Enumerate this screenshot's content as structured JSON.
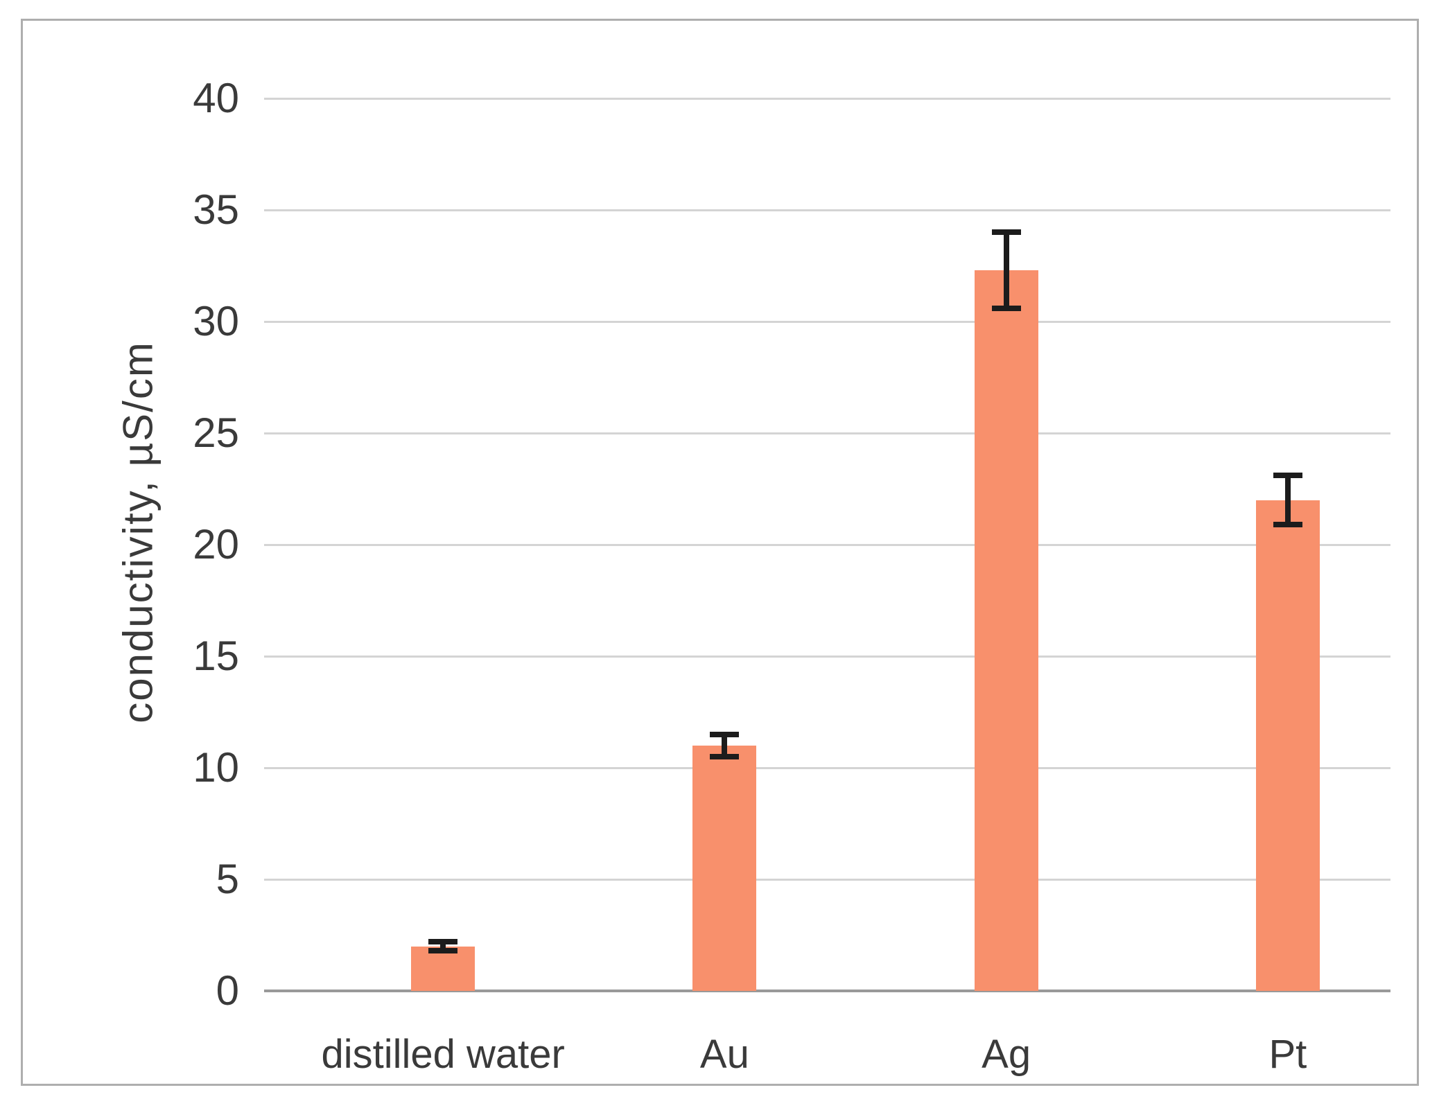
{
  "chart_data": {
    "type": "bar",
    "title": "",
    "xlabel": "",
    "ylabel": "conductivity, µS/cm",
    "categories": [
      "distilled water",
      "Au",
      "Ag",
      "Pt"
    ],
    "values": [
      2.0,
      11.0,
      32.3,
      22.0
    ],
    "error_bars": [
      0.2,
      0.5,
      1.7,
      1.1
    ],
    "ylim": [
      0,
      40
    ],
    "ytick_step": 5,
    "yticks": [
      0,
      5,
      10,
      15,
      20,
      25,
      30,
      35,
      40
    ],
    "grid": "horizontal-only",
    "legend_position": "none",
    "colors": {
      "bar_fill": "#f8906c",
      "error_bar": "#1c1c1c",
      "gridline": "#d4d4d4",
      "axis_line": "#999999",
      "frame_border": "#aeaeae",
      "text": "#3a3a3a",
      "background": "#ffffff"
    }
  }
}
